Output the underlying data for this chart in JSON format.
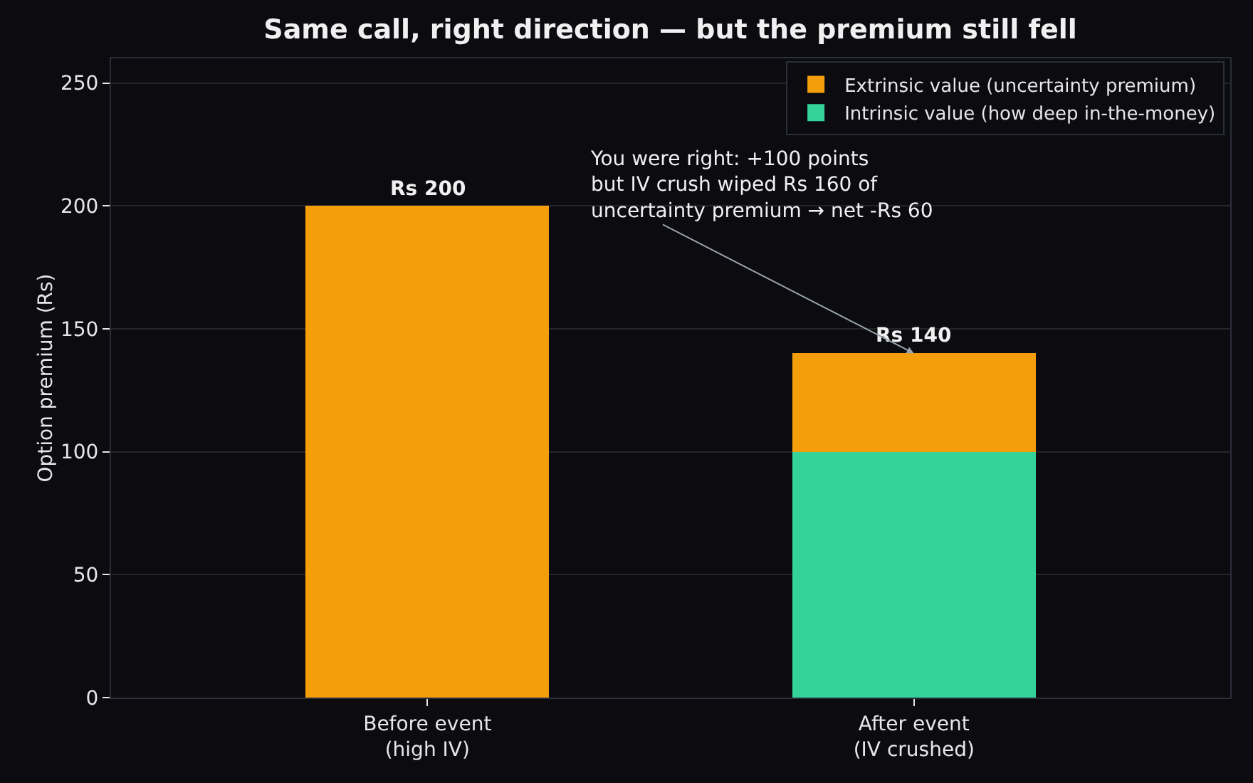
{
  "chart_data": {
    "type": "bar",
    "title": "Same call, right direction — but the premium still fell",
    "ylabel": "Option premium (Rs)",
    "categories": [
      "Before event\n(high IV)",
      "After event\n(IV crushed)"
    ],
    "stacked": true,
    "series": [
      {
        "name": "Intrinsic value (how deep in-the-money)",
        "color": "#34d399",
        "values": [
          0,
          100
        ]
      },
      {
        "name": "Extrinsic value (uncertainty premium)",
        "color": "#f59e0b",
        "values": [
          200,
          40
        ]
      }
    ],
    "totals": [
      "Rs 200",
      "Rs 140"
    ],
    "annotations": [
      {
        "text": "You were right: +100 points\nbut IV crush wiped Rs 160 of\nuncertainty premium → net -Rs 60",
        "x": "After event\n(IV crushed)",
        "y": 140
      }
    ],
    "ylim": [
      0,
      260
    ],
    "yticks": [
      0,
      50,
      100,
      150,
      200,
      250
    ],
    "grid": "y",
    "legend": "top right"
  }
}
